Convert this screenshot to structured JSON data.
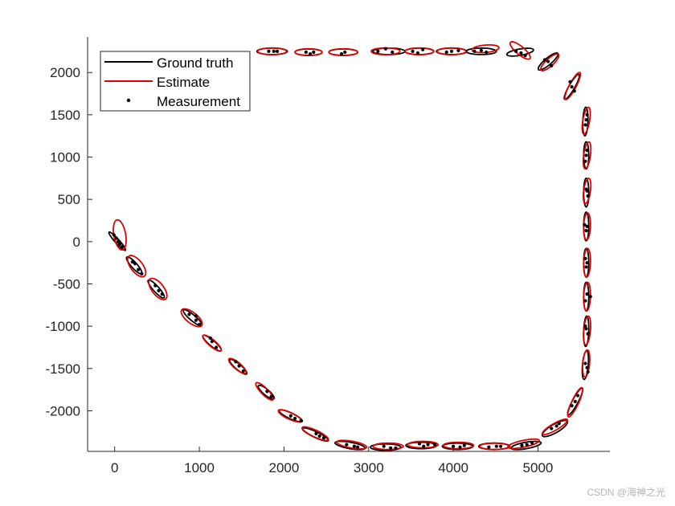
{
  "chart_data": {
    "type": "scatter",
    "title": "",
    "xlabel": "",
    "ylabel": "",
    "xlim": [
      -320,
      5850
    ],
    "ylim": [
      -2480,
      2420
    ],
    "xticks": [
      0,
      1000,
      2000,
      3000,
      4000,
      5000
    ],
    "yticks": [
      -2000,
      -1500,
      -1000,
      -500,
      0,
      500,
      1000,
      1500,
      2000
    ],
    "grid": false,
    "legend_position": "top-left",
    "colors": {
      "ground_truth": "#000000",
      "estimate": "#e00000",
      "measurement": "#000000"
    },
    "series": [
      {
        "name": "Ground truth",
        "style": "ellipse",
        "color": "#000000",
        "ellipses": [
          {
            "x": 30,
            "y": 5,
            "rx": 145,
            "ry": 25,
            "angle": -48
          },
          {
            "x": 230,
            "y": -280,
            "rx": 130,
            "ry": 34,
            "angle": -48
          },
          {
            "x": 490,
            "y": -560,
            "rx": 140,
            "ry": 34,
            "angle": -48
          },
          {
            "x": 920,
            "y": -900,
            "rx": 140,
            "ry": 34,
            "angle": -40
          },
          {
            "x": 1150,
            "y": -1200,
            "rx": 140,
            "ry": 34,
            "angle": -40
          },
          {
            "x": 1460,
            "y": -1480,
            "rx": 130,
            "ry": 34,
            "angle": -40
          },
          {
            "x": 1790,
            "y": -1780,
            "rx": 120,
            "ry": 34,
            "angle": -40
          },
          {
            "x": 2080,
            "y": -2060,
            "rx": 150,
            "ry": 34,
            "angle": -25
          },
          {
            "x": 2370,
            "y": -2280,
            "rx": 170,
            "ry": 34,
            "angle": -25
          },
          {
            "x": 2780,
            "y": -2410,
            "rx": 180,
            "ry": 38,
            "angle": -10
          },
          {
            "x": 3200,
            "y": -2430,
            "rx": 180,
            "ry": 38,
            "angle": 0
          },
          {
            "x": 3620,
            "y": -2410,
            "rx": 180,
            "ry": 38,
            "angle": 0
          },
          {
            "x": 4050,
            "y": -2420,
            "rx": 180,
            "ry": 38,
            "angle": 0
          },
          {
            "x": 4480,
            "y": -2420,
            "rx": 180,
            "ry": 38,
            "angle": 0
          },
          {
            "x": 4860,
            "y": -2410,
            "rx": 180,
            "ry": 38,
            "angle": 10
          },
          {
            "x": 5200,
            "y": -2210,
            "rx": 170,
            "ry": 50,
            "angle": 30
          },
          {
            "x": 5440,
            "y": -1890,
            "rx": 180,
            "ry": 34,
            "angle": 62
          },
          {
            "x": 5560,
            "y": -1460,
            "rx": 170,
            "ry": 34,
            "angle": 85
          },
          {
            "x": 5570,
            "y": -1060,
            "rx": 180,
            "ry": 30,
            "angle": 88
          },
          {
            "x": 5570,
            "y": -650,
            "rx": 170,
            "ry": 30,
            "angle": 90
          },
          {
            "x": 5570,
            "y": -250,
            "rx": 170,
            "ry": 30,
            "angle": 90
          },
          {
            "x": 5570,
            "y": 180,
            "rx": 170,
            "ry": 30,
            "angle": 90
          },
          {
            "x": 5570,
            "y": 580,
            "rx": 170,
            "ry": 30,
            "angle": 90
          },
          {
            "x": 5570,
            "y": 1020,
            "rx": 160,
            "ry": 30,
            "angle": 90
          },
          {
            "x": 5560,
            "y": 1420,
            "rx": 170,
            "ry": 30,
            "angle": 88
          },
          {
            "x": 5400,
            "y": 1830,
            "rx": 170,
            "ry": 34,
            "angle": 60
          },
          {
            "x": 5120,
            "y": 2130,
            "rx": 150,
            "ry": 40,
            "angle": 40
          },
          {
            "x": 4790,
            "y": 2240,
            "rx": 160,
            "ry": 38,
            "angle": 10
          },
          {
            "x": 4330,
            "y": 2250,
            "rx": 180,
            "ry": 38,
            "angle": 0
          },
          {
            "x": 3980,
            "y": 2250,
            "rx": 180,
            "ry": 38,
            "angle": 0
          },
          {
            "x": 3600,
            "y": 2250,
            "rx": 170,
            "ry": 38,
            "angle": 0
          },
          {
            "x": 3240,
            "y": 2250,
            "rx": 190,
            "ry": 38,
            "angle": 0
          },
          {
            "x": 2700,
            "y": 2240,
            "rx": 170,
            "ry": 38,
            "angle": 0
          },
          {
            "x": 2290,
            "y": 2240,
            "rx": 160,
            "ry": 38,
            "angle": 0
          },
          {
            "x": 1860,
            "y": 2250,
            "rx": 180,
            "ry": 38,
            "angle": 0
          }
        ]
      },
      {
        "name": "Estimate",
        "style": "ellipse",
        "color": "#e00000",
        "ellipses": [
          {
            "x": 60,
            "y": 80,
            "rx": 180,
            "ry": 70,
            "angle": -80
          },
          {
            "x": 260,
            "y": -290,
            "rx": 150,
            "ry": 70,
            "angle": -52
          },
          {
            "x": 510,
            "y": -560,
            "rx": 150,
            "ry": 70,
            "angle": -52
          },
          {
            "x": 910,
            "y": -900,
            "rx": 150,
            "ry": 64,
            "angle": -38
          },
          {
            "x": 1150,
            "y": -1200,
            "rx": 140,
            "ry": 40,
            "angle": -40
          },
          {
            "x": 1450,
            "y": -1470,
            "rx": 130,
            "ry": 40,
            "angle": -40
          },
          {
            "x": 1770,
            "y": -1770,
            "rx": 140,
            "ry": 40,
            "angle": -45
          },
          {
            "x": 2070,
            "y": -2060,
            "rx": 150,
            "ry": 40,
            "angle": -25
          },
          {
            "x": 2370,
            "y": -2270,
            "rx": 170,
            "ry": 40,
            "angle": -25
          },
          {
            "x": 2800,
            "y": -2400,
            "rx": 180,
            "ry": 40,
            "angle": -10
          },
          {
            "x": 3230,
            "y": -2420,
            "rx": 180,
            "ry": 38,
            "angle": 0
          },
          {
            "x": 3640,
            "y": -2400,
            "rx": 180,
            "ry": 38,
            "angle": 0
          },
          {
            "x": 4060,
            "y": -2410,
            "rx": 180,
            "ry": 38,
            "angle": 0
          },
          {
            "x": 4490,
            "y": -2420,
            "rx": 180,
            "ry": 38,
            "angle": 0
          },
          {
            "x": 4830,
            "y": -2390,
            "rx": 190,
            "ry": 40,
            "angle": 12
          },
          {
            "x": 5200,
            "y": -2190,
            "rx": 170,
            "ry": 40,
            "angle": 30
          },
          {
            "x": 5440,
            "y": -1900,
            "rx": 190,
            "ry": 40,
            "angle": 65
          },
          {
            "x": 5570,
            "y": -1440,
            "rx": 160,
            "ry": 40,
            "angle": 85
          },
          {
            "x": 5580,
            "y": -1050,
            "rx": 170,
            "ry": 40,
            "angle": 85
          },
          {
            "x": 5580,
            "y": -650,
            "rx": 170,
            "ry": 40,
            "angle": 88
          },
          {
            "x": 5580,
            "y": -250,
            "rx": 170,
            "ry": 40,
            "angle": 88
          },
          {
            "x": 5580,
            "y": 180,
            "rx": 160,
            "ry": 40,
            "angle": 88
          },
          {
            "x": 5580,
            "y": 600,
            "rx": 150,
            "ry": 40,
            "angle": 82
          },
          {
            "x": 5580,
            "y": 1020,
            "rx": 160,
            "ry": 40,
            "angle": 82
          },
          {
            "x": 5570,
            "y": 1430,
            "rx": 160,
            "ry": 40,
            "angle": 80
          },
          {
            "x": 5410,
            "y": 1840,
            "rx": 180,
            "ry": 40,
            "angle": 62
          },
          {
            "x": 5140,
            "y": 2120,
            "rx": 140,
            "ry": 44,
            "angle": 42
          },
          {
            "x": 4790,
            "y": 2260,
            "rx": 150,
            "ry": 48,
            "angle": -40
          },
          {
            "x": 4380,
            "y": 2280,
            "rx": 160,
            "ry": 44,
            "angle": 5
          },
          {
            "x": 3980,
            "y": 2250,
            "rx": 170,
            "ry": 40,
            "angle": 0
          },
          {
            "x": 3600,
            "y": 2250,
            "rx": 170,
            "ry": 40,
            "angle": 0
          },
          {
            "x": 3200,
            "y": 2250,
            "rx": 170,
            "ry": 40,
            "angle": 0
          },
          {
            "x": 2700,
            "y": 2240,
            "rx": 170,
            "ry": 40,
            "angle": 0
          },
          {
            "x": 2290,
            "y": 2240,
            "rx": 160,
            "ry": 40,
            "angle": 0
          },
          {
            "x": 1860,
            "y": 2250,
            "rx": 170,
            "ry": 40,
            "angle": 0
          }
        ]
      },
      {
        "name": "Measurement",
        "style": "marker",
        "color": "#000000",
        "points": [
          [
            20,
            40
          ],
          [
            60,
            -30
          ],
          [
            40,
            0
          ],
          [
            -10,
            80
          ],
          [
            90,
            -60
          ],
          [
            240,
            -260
          ],
          [
            280,
            -330
          ],
          [
            210,
            -240
          ],
          [
            320,
            -380
          ],
          [
            480,
            -520
          ],
          [
            520,
            -580
          ],
          [
            560,
            -620
          ],
          [
            880,
            -860
          ],
          [
            960,
            -930
          ],
          [
            1000,
            -980
          ],
          [
            960,
            -880
          ],
          [
            1150,
            -1180
          ],
          [
            1200,
            -1250
          ],
          [
            1130,
            -1140
          ],
          [
            1470,
            -1470
          ],
          [
            1520,
            -1530
          ],
          [
            1430,
            -1420
          ],
          [
            1800,
            -1770
          ],
          [
            1850,
            -1830
          ],
          [
            2080,
            -2060
          ],
          [
            2130,
            -2090
          ],
          [
            2200,
            -2120
          ],
          [
            2380,
            -2270
          ],
          [
            2470,
            -2320
          ],
          [
            2420,
            -2300
          ],
          [
            2740,
            -2400
          ],
          [
            2830,
            -2420
          ],
          [
            2870,
            -2430
          ],
          [
            3180,
            -2420
          ],
          [
            3260,
            -2440
          ],
          [
            3320,
            -2440
          ],
          [
            3600,
            -2390
          ],
          [
            3650,
            -2420
          ],
          [
            3700,
            -2400
          ],
          [
            3780,
            -2400
          ],
          [
            4000,
            -2420
          ],
          [
            4080,
            -2430
          ],
          [
            4130,
            -2410
          ],
          [
            4420,
            -2430
          ],
          [
            4510,
            -2420
          ],
          [
            4560,
            -2420
          ],
          [
            4810,
            -2410
          ],
          [
            4870,
            -2400
          ],
          [
            4930,
            -2380
          ],
          [
            5160,
            -2210
          ],
          [
            5220,
            -2180
          ],
          [
            5250,
            -2150
          ],
          [
            5440,
            -1890
          ],
          [
            5470,
            -1820
          ],
          [
            5400,
            -1940
          ],
          [
            5560,
            -1440
          ],
          [
            5580,
            -1490
          ],
          [
            5590,
            -1540
          ],
          [
            5570,
            -1030
          ],
          [
            5590,
            -1090
          ],
          [
            5560,
            -1000
          ],
          [
            5580,
            -620
          ],
          [
            5620,
            -650
          ],
          [
            5560,
            -700
          ],
          [
            5570,
            -300
          ],
          [
            5580,
            -250
          ],
          [
            5560,
            -200
          ],
          [
            5550,
            200
          ],
          [
            5580,
            180
          ],
          [
            5570,
            130
          ],
          [
            5580,
            600
          ],
          [
            5570,
            620
          ],
          [
            5590,
            540
          ],
          [
            5570,
            1020
          ],
          [
            5580,
            1080
          ],
          [
            5560,
            950
          ],
          [
            5570,
            1440
          ],
          [
            5580,
            1500
          ],
          [
            5560,
            1380
          ],
          [
            5400,
            1830
          ],
          [
            5430,
            1780
          ],
          [
            5380,
            1890
          ],
          [
            5120,
            2130
          ],
          [
            5160,
            2080
          ],
          [
            5080,
            2150
          ],
          [
            4740,
            2250
          ],
          [
            4800,
            2230
          ],
          [
            4850,
            2200
          ],
          [
            4250,
            2250
          ],
          [
            4330,
            2260
          ],
          [
            4390,
            2240
          ],
          [
            3920,
            2240
          ],
          [
            3980,
            2250
          ],
          [
            4060,
            2260
          ],
          [
            3520,
            2250
          ],
          [
            3580,
            2230
          ],
          [
            3640,
            2270
          ],
          [
            3110,
            2250
          ],
          [
            3200,
            2280
          ],
          [
            3280,
            2240
          ],
          [
            2680,
            2220
          ],
          [
            2720,
            2240
          ],
          [
            2260,
            2240
          ],
          [
            2310,
            2220
          ],
          [
            2350,
            2240
          ],
          [
            1820,
            2250
          ],
          [
            1880,
            2250
          ],
          [
            1920,
            2250
          ]
        ]
      }
    ]
  },
  "watermark": "CSDN @海神之光"
}
